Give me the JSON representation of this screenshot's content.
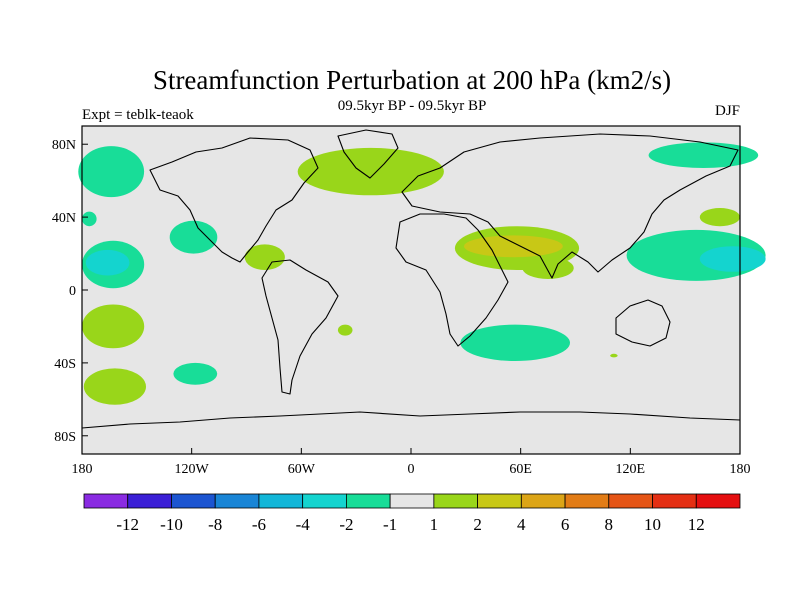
{
  "chart_data": {
    "type": "heatmap",
    "title": "Streamfunction Perturbation at 200 hPa (km2/s)",
    "subtitle": "09.5kyr BP - 09.5kyr BP",
    "left_label": "Expt = teblk-teaok",
    "right_label": "DJF",
    "x_range": [
      -180,
      180
    ],
    "y_range": [
      -90,
      90
    ],
    "x_ticks": [
      {
        "value": -180,
        "label": "180"
      },
      {
        "value": -120,
        "label": "120W"
      },
      {
        "value": -60,
        "label": "60W"
      },
      {
        "value": 0,
        "label": "0"
      },
      {
        "value": 60,
        "label": "60E"
      },
      {
        "value": 120,
        "label": "120E"
      },
      {
        "value": 180,
        "label": "180"
      }
    ],
    "y_ticks": [
      {
        "value": 80,
        "label": "80N"
      },
      {
        "value": 40,
        "label": "40N"
      },
      {
        "value": 0,
        "label": "0"
      },
      {
        "value": -40,
        "label": "40S"
      },
      {
        "value": -80,
        "label": "80S"
      }
    ],
    "colorbar": {
      "colors": [
        "#8a2be2",
        "#3b1fd6",
        "#1c55d1",
        "#1985d6",
        "#12b6d8",
        "#14d4cf",
        "#18dd98",
        "#e6e6e6",
        "#99d61a",
        "#c8c816",
        "#dca517",
        "#e27c16",
        "#e55516",
        "#e42f13",
        "#e50f10"
      ],
      "labels": [
        "-12",
        "-10",
        "-8",
        "-6",
        "-4",
        "-2",
        "-1",
        "1",
        "2",
        "4",
        "6",
        "8",
        "10",
        "12"
      ]
    },
    "regions": [
      {
        "name": "n-pacific-west-neg",
        "level": -2,
        "lon": -164,
        "lat": 65,
        "rlon": 18,
        "rlat": 14
      },
      {
        "name": "n-pacific-east-neg",
        "level": -2,
        "lon": -176,
        "lat": 39,
        "rlon": 4,
        "rlat": 4
      },
      {
        "name": "hawaii-neg",
        "level": -2,
        "lon": -163,
        "lat": 14,
        "rlon": 17,
        "rlat": 13
      },
      {
        "name": "hawaii-core-neg",
        "level": -4,
        "lon": -166,
        "lat": 15,
        "rlon": 12,
        "rlat": 7
      },
      {
        "name": "se-pacific-neg",
        "level": -2,
        "lon": -119,
        "lat": 29,
        "rlon": 13,
        "rlat": 9
      },
      {
        "name": "caribbean-pos",
        "level": 2,
        "lon": -80,
        "lat": 18,
        "rlon": 11,
        "rlat": 7
      },
      {
        "name": "atlantic-europe-pos",
        "level": 2,
        "lon": -22,
        "lat": 65,
        "rlon": 40,
        "rlat": 13
      },
      {
        "name": "middle-east-pos",
        "level": 2,
        "lon": 58,
        "lat": 23,
        "rlon": 34,
        "rlat": 12
      },
      {
        "name": "middle-east-core-pos",
        "level": 4,
        "lon": 56,
        "lat": 24,
        "rlon": 27,
        "rlat": 6
      },
      {
        "name": "india-ocean-pos",
        "level": 2,
        "lon": 75,
        "lat": 12,
        "rlon": 14,
        "rlat": 6
      },
      {
        "name": "sw-indian-neg",
        "level": -2,
        "lon": 57,
        "lat": -29,
        "rlon": 30,
        "rlat": 10
      },
      {
        "name": "nw-pacific-neg",
        "level": -2,
        "lon": 156,
        "lat": 19,
        "rlon": 38,
        "rlat": 14
      },
      {
        "name": "nw-pacific-core-neg",
        "level": -4,
        "lon": 176,
        "lat": 17,
        "rlon": 18,
        "rlat": 7
      },
      {
        "name": "n-pacific-dateline-neg",
        "level": -2,
        "lon": 160,
        "lat": 74,
        "rlon": 30,
        "rlat": 7
      },
      {
        "name": "n-pacific-dateline-pos",
        "level": 2,
        "lon": 169,
        "lat": 40,
        "rlon": 11,
        "rlat": 5
      },
      {
        "name": "s-pacific-west-pos",
        "level": 2,
        "lon": -163,
        "lat": -20,
        "rlon": 17,
        "rlat": 12
      },
      {
        "name": "s-pacific-south-pos",
        "level": 2,
        "lon": -162,
        "lat": -53,
        "rlon": 17,
        "rlat": 10
      },
      {
        "name": "s-pacific-mid-neg",
        "level": -2,
        "lon": -118,
        "lat": -46,
        "rlon": 12,
        "rlat": 6
      },
      {
        "name": "s-atlantic-pos",
        "level": 2,
        "lon": -36,
        "lat": -22,
        "rlon": 4,
        "rlat": 3
      },
      {
        "name": "indonesia-pos",
        "level": 2,
        "lon": 111,
        "lat": -36,
        "rlon": 2,
        "rlat": 1
      }
    ]
  }
}
